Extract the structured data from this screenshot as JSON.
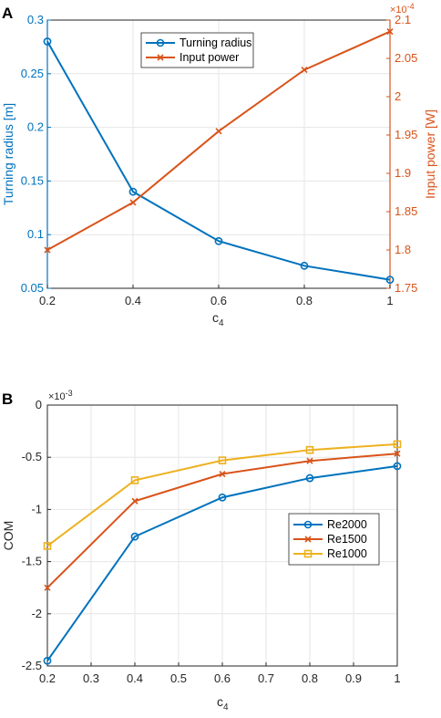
{
  "chart_data": [
    {
      "panel_label": "A",
      "type": "line",
      "xlabel": "c",
      "xlabel_sub": "4",
      "x": [
        0.2,
        0.4,
        0.6,
        0.8,
        1.0
      ],
      "xlim": [
        0.2,
        1.0
      ],
      "xticks": [
        "0.2",
        "0.4",
        "0.6",
        "0.8",
        "1"
      ],
      "grid": true,
      "legend_position": "top-center",
      "left_axis": {
        "label": "Turning radius [m]",
        "color": "#0072BD",
        "ylim": [
          0.05,
          0.3
        ],
        "ticks": [
          "0.05",
          "0.1",
          "0.15",
          "0.2",
          "0.25",
          "0.3"
        ]
      },
      "right_axis": {
        "label": "Input power [W]",
        "color": "#D95319",
        "ylim": [
          1.75,
          2.1
        ],
        "multiplier_base": "×10",
        "multiplier_exp": "-4",
        "ticks": [
          "1.75",
          "1.8",
          "1.85",
          "1.9",
          "1.95",
          "2",
          "2.05",
          "2.1"
        ]
      },
      "series": [
        {
          "name": "Turning radius",
          "axis": "left",
          "color": "#0072BD",
          "marker": "circle",
          "values": [
            0.28,
            0.14,
            0.094,
            0.071,
            0.058
          ]
        },
        {
          "name": "Input power",
          "axis": "right",
          "color": "#D95319",
          "marker": "x",
          "values": [
            1.8,
            1.862,
            1.955,
            2.035,
            2.085
          ]
        }
      ]
    },
    {
      "panel_label": "B",
      "type": "line",
      "xlabel": "c",
      "xlabel_sub": "4",
      "ylabel": "COM",
      "x": [
        0.2,
        0.4,
        0.6,
        0.8,
        1.0
      ],
      "xlim": [
        0.2,
        1.0
      ],
      "xticks": [
        "0.2",
        "0.3",
        "0.4",
        "0.5",
        "0.6",
        "0.7",
        "0.8",
        "0.9",
        "1"
      ],
      "ylim": [
        -2.5,
        0
      ],
      "yticks": [
        "-2.5",
        "-2",
        "-1.5",
        "-1",
        "-0.5",
        "0"
      ],
      "multiplier_base": "×10",
      "multiplier_exp": "-3",
      "grid": true,
      "legend_position": "right",
      "series": [
        {
          "name": "Re2000",
          "color": "#0072BD",
          "marker": "circle",
          "values": [
            -2.45,
            -1.26,
            -0.885,
            -0.7,
            -0.585
          ]
        },
        {
          "name": "Re1500",
          "color": "#D95319",
          "marker": "x",
          "values": [
            -1.75,
            -0.92,
            -0.66,
            -0.535,
            -0.465
          ]
        },
        {
          "name": "Re1000",
          "color": "#EDB120",
          "marker": "square",
          "values": [
            -1.35,
            -0.72,
            -0.53,
            -0.43,
            -0.375
          ]
        }
      ]
    }
  ]
}
